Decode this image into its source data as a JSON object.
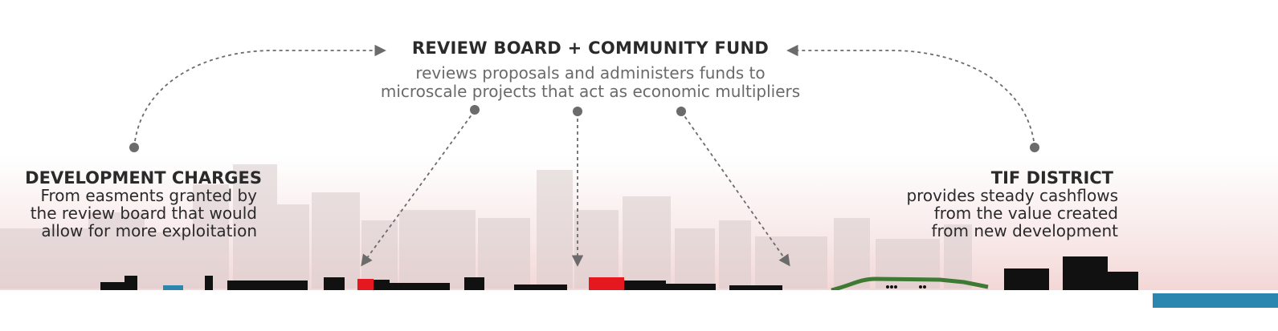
{
  "center": {
    "title": "REVIEW BOARD + COMMUNITY FUND",
    "description_lines": [
      "reviews proposals and administers funds to",
      "microscale projects that act as economic multipliers"
    ]
  },
  "development_charges": {
    "title": "DEVELOPMENT CHARGES",
    "description_lines": [
      "From easments granted by",
      "the review board that would",
      "allow for more exploitation"
    ]
  },
  "tif_district": {
    "title": "TIF DISTRICT",
    "description_lines": [
      "provides steady cashflows",
      "from the value created",
      "from new development"
    ]
  },
  "colors": {
    "text_dark": "#2a2a2a",
    "text_gray": "#6a6a6a",
    "arrow": "#6b6b6b",
    "building_black": "#111111",
    "building_red": "#e5171f",
    "skyline_ghost": "#d8caca",
    "park_green": "#3e7a33",
    "water_blue": "#2b86b0"
  }
}
